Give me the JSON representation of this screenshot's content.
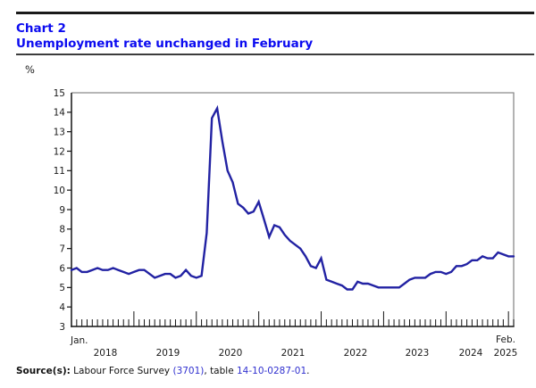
{
  "header": {
    "chart_number": "Chart 2",
    "title": "Unemployment rate unchanged in February"
  },
  "chart_data": {
    "type": "line",
    "title": "Chart 2",
    "subtitle": "Unemployment rate unchanged in February",
    "ylabel": "%",
    "xlabel": "",
    "ylim": [
      3,
      15
    ],
    "yticks": [
      3,
      4,
      5,
      6,
      7,
      8,
      9,
      10,
      11,
      12,
      13,
      14,
      15
    ],
    "x_first_tick_label": "Jan.",
    "x_last_tick_label": "Feb.",
    "x_tick_labels": [
      "2018",
      "2019",
      "2020",
      "2021",
      "2022",
      "2023",
      "2024",
      "2025"
    ],
    "grid": false,
    "legend_position": "none",
    "line_color": "#2222a3",
    "series": [
      {
        "name": "Unemployment rate (%)",
        "start_month": "2018-01",
        "end_month": "2025-02",
        "frequency": "monthly",
        "values": [
          5.9,
          6.0,
          5.8,
          5.8,
          5.9,
          6.0,
          5.9,
          5.9,
          6.0,
          5.9,
          5.8,
          5.7,
          5.8,
          5.9,
          5.9,
          5.7,
          5.5,
          5.6,
          5.7,
          5.7,
          5.5,
          5.6,
          5.9,
          5.6,
          5.5,
          5.6,
          7.8,
          13.7,
          14.2,
          12.5,
          11.0,
          10.4,
          9.3,
          9.1,
          8.8,
          8.9,
          9.4,
          8.5,
          7.6,
          8.2,
          8.1,
          7.7,
          7.4,
          7.2,
          7.0,
          6.6,
          6.1,
          6.0,
          6.5,
          5.4,
          5.3,
          5.2,
          5.1,
          4.9,
          4.9,
          5.3,
          5.2,
          5.2,
          5.1,
          5.0,
          5.0,
          5.0,
          5.0,
          5.0,
          5.2,
          5.4,
          5.5,
          5.5,
          5.5,
          5.7,
          5.8,
          5.8,
          5.7,
          5.8,
          6.1,
          6.1,
          6.2,
          6.4,
          6.4,
          6.6,
          6.5,
          6.5,
          6.8,
          6.7,
          6.6,
          6.6
        ]
      }
    ]
  },
  "source": {
    "label": "Source(s):",
    "part1": " Labour Force Survey ",
    "link1": "(3701)",
    "part2": ", table ",
    "link2": "14-10-0287-01",
    "part3": "."
  }
}
